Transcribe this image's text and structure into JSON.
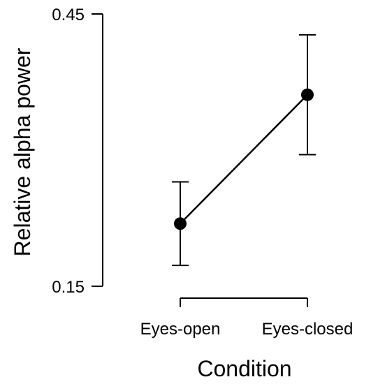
{
  "chart_data": {
    "type": "line",
    "title": "",
    "xlabel": "Condition",
    "ylabel": "Relative alpha power",
    "categories": [
      "Eyes-open",
      "Eyes-closed"
    ],
    "series": [
      {
        "values": [
          0.219,
          0.361
        ],
        "error_low": [
          0.173,
          0.295
        ],
        "error_high": [
          0.265,
          0.427
        ]
      }
    ],
    "ylim": [
      0.15,
      0.45
    ],
    "yticks": [
      "0.45",
      "0.15"
    ],
    "grid": false,
    "legend": "none",
    "colors": {
      "line": "#000000",
      "points": "#000000"
    }
  }
}
